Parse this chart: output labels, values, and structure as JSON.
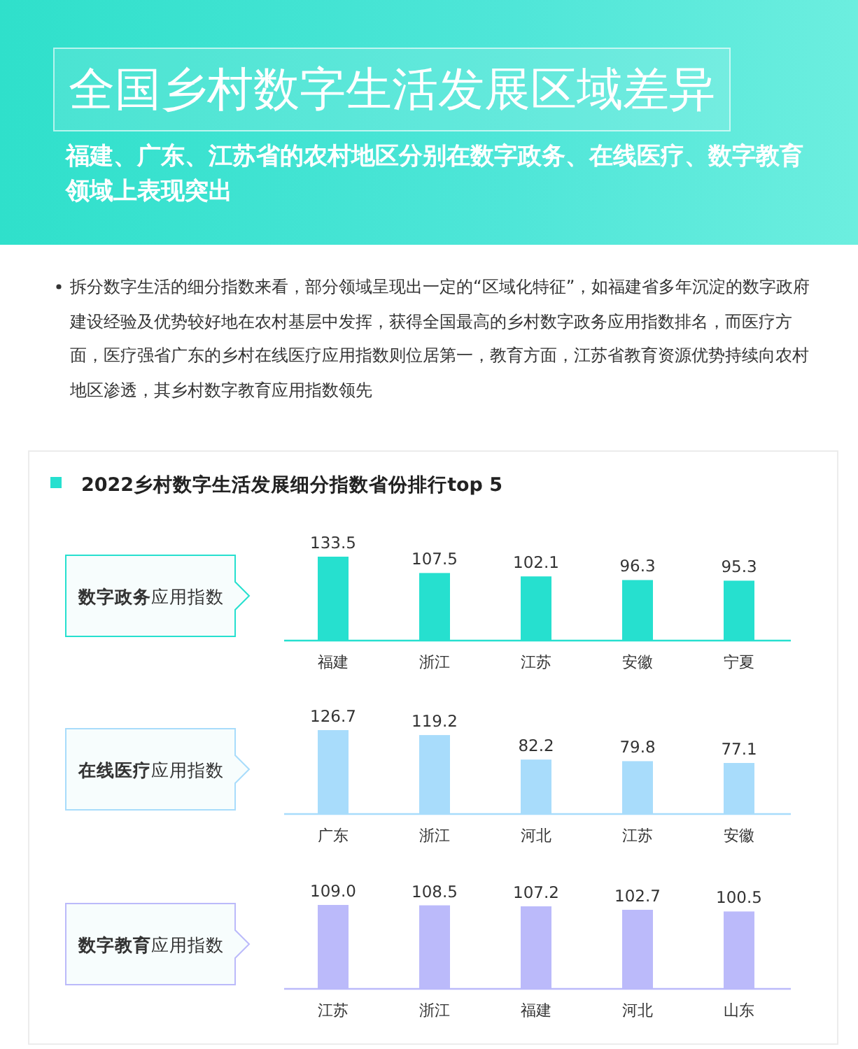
{
  "chart_data": [
    {
      "type": "bar",
      "title": "全国乡村数字生活发展区域差异",
      "subtitle": "福建、广东、江苏省的农村地区分别在数字政务、在线医疗、数字教育领域上表现突出",
      "annotations": [
        "拆分数字生活的细分指数来看，部分领域呈现出一定的“区域化特征”，如福建省多年沉淀的数字政府建设经验及优势较好地在农村基层中发挥，获得全国最高的乡村数字政务应用指数排名，而医疗方面，医疗强省广东的乡村在线医疗应用指数则位居第一，教育方面，江苏省教育资源优势持续向农村地区渗透，其乡村数字教育应用指数领先",
        "2022乡村数字生活发展细分指数省份排行top 5"
      ],
      "ylabel": "数字政务应用指数",
      "categories": [
        "福建",
        "浙江",
        "江苏",
        "安徽",
        "宁夏"
      ],
      "values": [
        133.5,
        107.5,
        102.1,
        96.3,
        95.3
      ],
      "value_labels": [
        "133.5",
        "107.5",
        "102.1",
        "96.3",
        "95.3"
      ],
      "color": "#26e0cf"
    },
    {
      "type": "bar",
      "ylabel": "在线医疗应用指数",
      "categories": [
        "广东",
        "浙江",
        "河北",
        "江苏",
        "安徽"
      ],
      "values": [
        126.7,
        119.2,
        82.2,
        79.8,
        77.1
      ],
      "value_labels": [
        "126.7",
        "119.2",
        "82.2",
        "79.8",
        "77.1"
      ],
      "color": "#a8dcfb"
    },
    {
      "type": "bar",
      "ylabel": "数字教育应用指数",
      "categories": [
        "江苏",
        "浙江",
        "福建",
        "河北",
        "山东"
      ],
      "values": [
        109.0,
        108.5,
        107.2,
        102.7,
        100.5
      ],
      "value_labels": [
        "109.0",
        "108.5",
        "107.2",
        "102.7",
        "100.5"
      ],
      "color": "#bbbafa"
    }
  ]
}
